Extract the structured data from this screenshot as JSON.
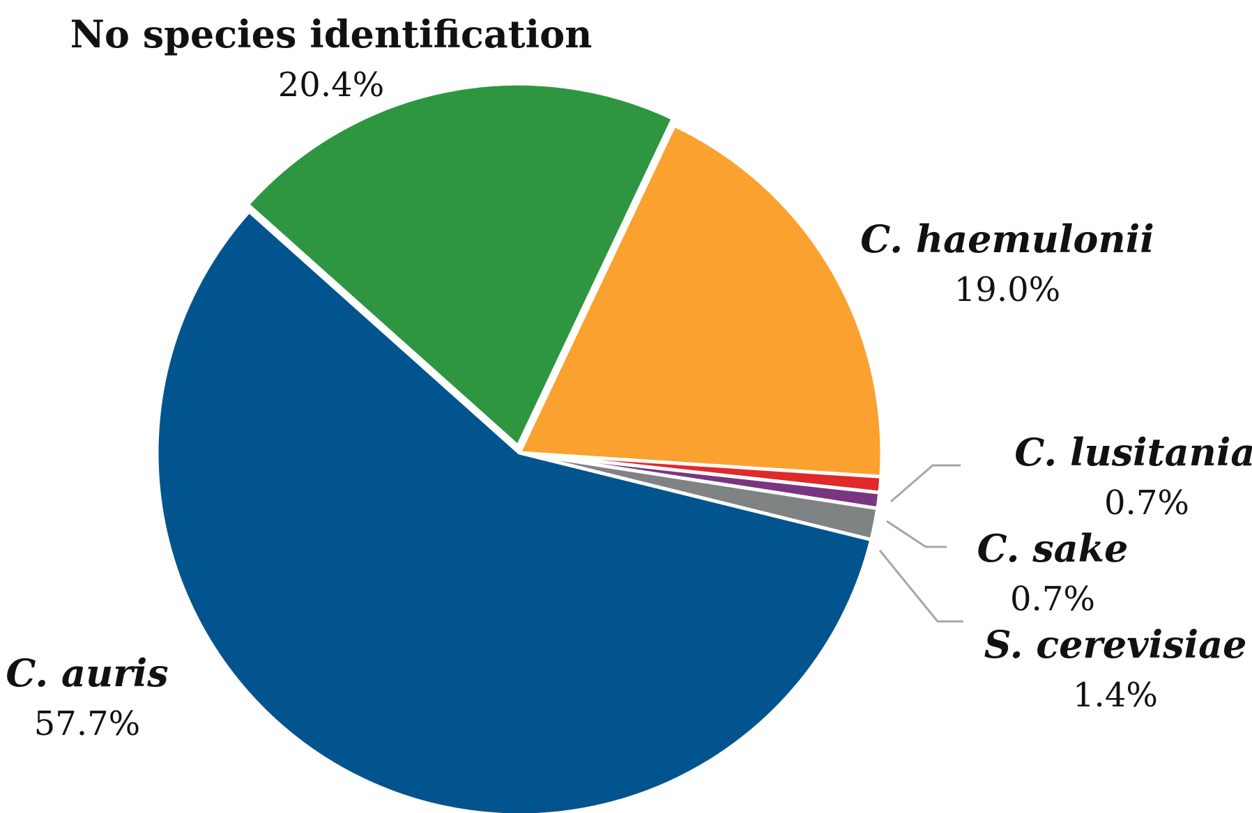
{
  "chart_data": {
    "type": "pie",
    "title": "",
    "slices": [
      {
        "label": "No species identification",
        "pct_label": "20.4%",
        "value": 20.4,
        "color": "#2e9640",
        "italic": false
      },
      {
        "label": "C. haemulonii",
        "pct_label": "19.0%",
        "value": 19.0,
        "color": "#fba12f",
        "italic": true
      },
      {
        "label": "C. lusitaniae",
        "pct_label": "0.7%",
        "value": 0.7,
        "color": "#e0292a",
        "italic": true
      },
      {
        "label": "C. sake",
        "pct_label": "0.7%",
        "value": 0.7,
        "color": "#7a3580",
        "italic": true
      },
      {
        "label": "S. cerevisiae",
        "pct_label": "1.4%",
        "value": 1.4,
        "color": "#808384",
        "italic": true
      },
      {
        "label": "C. auris",
        "pct_label": "57.7%",
        "value": 57.7,
        "color": "#02548e",
        "italic": true
      }
    ],
    "legend": "none (labels placed next to slices)"
  }
}
